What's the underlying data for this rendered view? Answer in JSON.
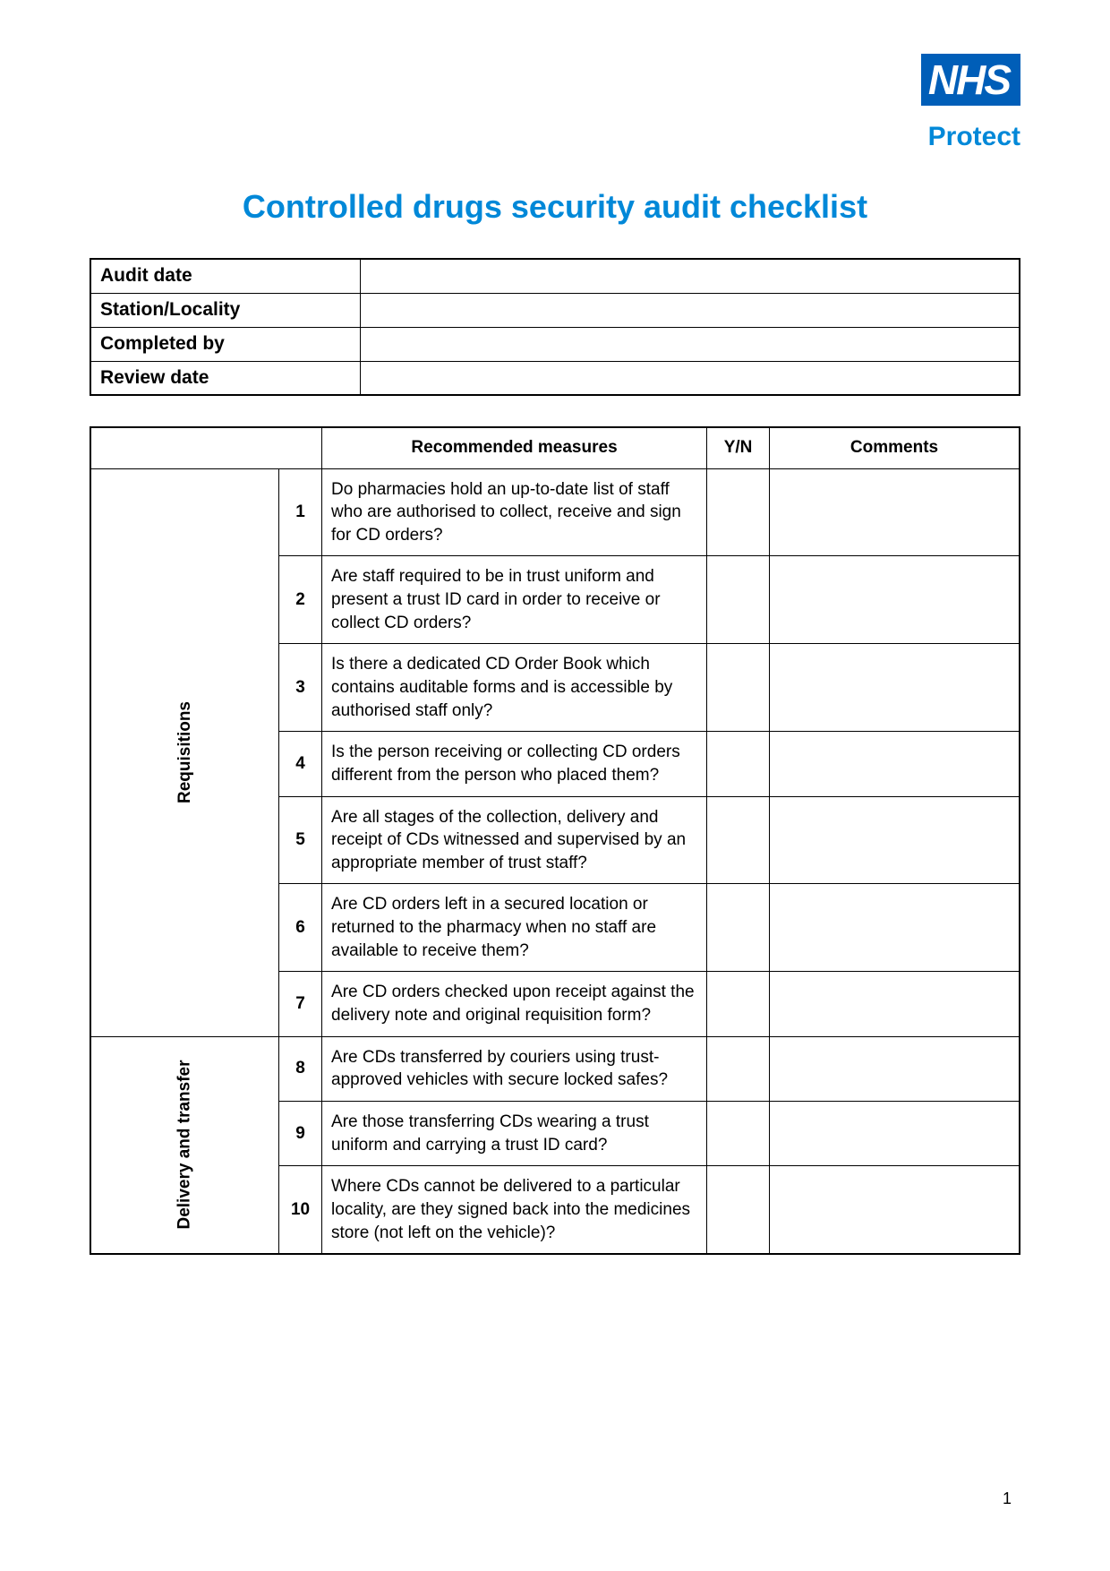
{
  "brand": {
    "logo_text": "NHS",
    "logo_bg": "#005eb8",
    "logo_fg": "#ffffff",
    "subbrand": "Protect",
    "accent_color": "#0088d8"
  },
  "title": "Controlled drugs security audit checklist",
  "info_fields": [
    {
      "label": "Audit date",
      "value": ""
    },
    {
      "label": "Station/Locality",
      "value": ""
    },
    {
      "label": "Completed by",
      "value": ""
    },
    {
      "label": "Review date",
      "value": ""
    }
  ],
  "columns": {
    "measures": "Recommended measures",
    "yn": "Y/N",
    "comments": "Comments"
  },
  "sections": [
    {
      "name": "Requisitions",
      "rows": [
        {
          "n": "1",
          "text": "Do pharmacies hold an up-to-date list of staff who are authorised to collect, receive and sign for CD orders?"
        },
        {
          "n": "2",
          "text": "Are staff required to be in trust uniform and present a trust ID card in order to receive or collect CD orders?"
        },
        {
          "n": "3",
          "text": "Is there a dedicated CD Order Book which contains auditable forms and is accessible by authorised staff only?"
        },
        {
          "n": "4",
          "text": "Is the person receiving or collecting CD orders different from the person who placed them?"
        },
        {
          "n": "5",
          "text": "Are all stages of the collection, delivery and receipt of CDs witnessed and supervised by an appropriate member of trust staff?"
        },
        {
          "n": "6",
          "text": "Are CD orders left in a secured location or returned to the pharmacy when no staff are available to receive them?"
        },
        {
          "n": "7",
          "text": "Are CD orders checked upon receipt against the delivery note and original requisition form?"
        }
      ]
    },
    {
      "name": "Delivery and transfer",
      "rows": [
        {
          "n": "8",
          "text": "Are CDs transferred by couriers using trust-approved vehicles with secure locked safes?"
        },
        {
          "n": "9",
          "text": "Are those transferring CDs wearing a trust uniform and carrying a trust ID card?"
        },
        {
          "n": "10",
          "text": "Where CDs cannot be delivered to a particular locality, are they signed back into the medicines store (not left on the vehicle)?"
        }
      ]
    }
  ],
  "page_number": "1"
}
